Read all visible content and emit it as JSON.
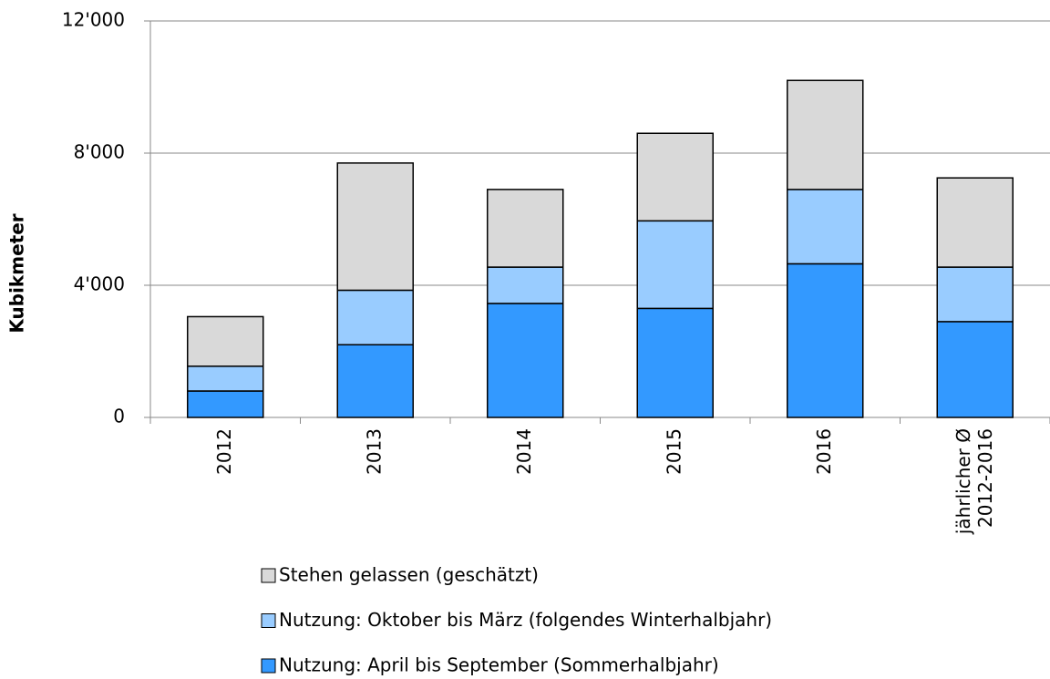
{
  "chart_data": {
    "type": "stacked_bar",
    "y_label": "Kubikmeter",
    "categories": [
      "2012",
      "2013",
      "2014",
      "2015",
      "2016",
      "jährlicher Ø\n2012-2016"
    ],
    "series": [
      {
        "name": "Nutzung: April bis September (Sommerhalbjahr)",
        "color": "#3399ff",
        "values": [
          800,
          2200,
          3450,
          3300,
          4650,
          2900
        ]
      },
      {
        "name": "Nutzung: Oktober bis März  (folgendes Winterhalbjahr)",
        "color": "#99ccff",
        "values": [
          750,
          1650,
          1100,
          2650,
          2250,
          1650
        ]
      },
      {
        "name": "Stehen gelassen  (geschätzt)",
        "color": "#d9d9d9",
        "values": [
          1500,
          3850,
          2350,
          2650,
          3300,
          2700
        ]
      }
    ],
    "ylim": [
      0,
      12000
    ],
    "yticks": [
      0,
      {
        "value": 4000,
        "label": "4'000"
      },
      {
        "value": 8000,
        "label": "8'000"
      },
      {
        "value": 12000,
        "label": "12'000"
      }
    ],
    "grid": true
  }
}
